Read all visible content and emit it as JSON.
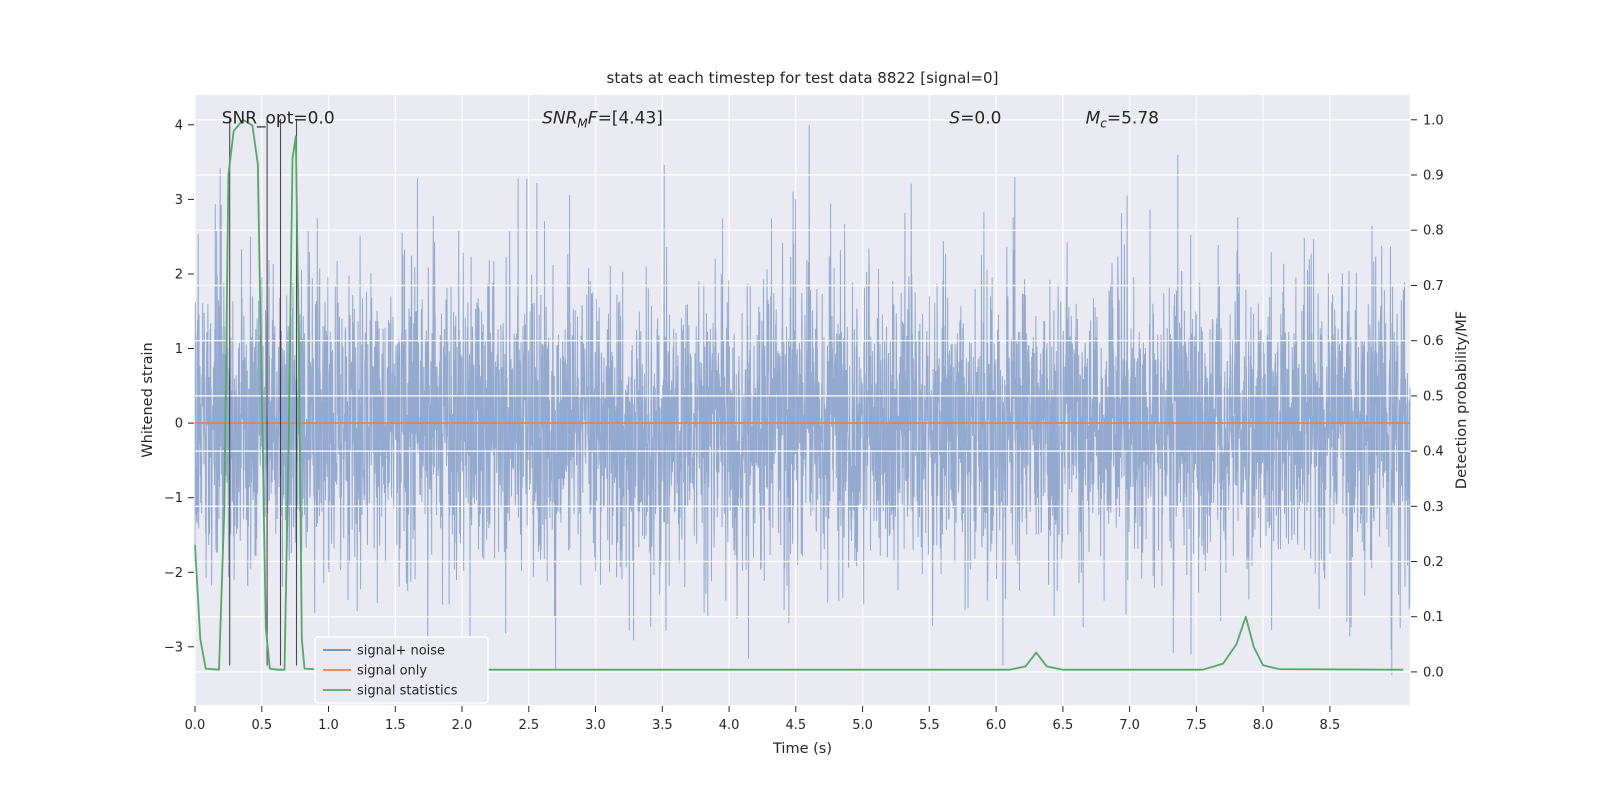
{
  "chart_data": {
    "type": "line",
    "title": "stats at each timestep for test data 8822 [signal=0]",
    "xlabel": "Time (s)",
    "ylabel_left": "Whitened strain",
    "ylabel_right": "Detection probability/MF",
    "xlim": [
      0,
      9.1
    ],
    "ylim_left": [
      -3.78,
      4.4
    ],
    "ylim_right": [
      -0.06,
      1.045
    ],
    "xticks": [
      [
        0,
        "0.0"
      ],
      [
        0.5,
        "0.5"
      ],
      [
        1,
        "1.0"
      ],
      [
        1.5,
        "1.5"
      ],
      [
        2,
        "2.0"
      ],
      [
        2.5,
        "2.5"
      ],
      [
        3,
        "3.0"
      ],
      [
        3.5,
        "3.5"
      ],
      [
        4,
        "4.0"
      ],
      [
        4.5,
        "4.5"
      ],
      [
        5,
        "5.0"
      ],
      [
        5.5,
        "5.5"
      ],
      [
        6,
        "6.0"
      ],
      [
        6.5,
        "6.5"
      ],
      [
        7,
        "7.0"
      ],
      [
        7.5,
        "7.5"
      ],
      [
        8,
        "8.0"
      ],
      [
        8.5,
        "8.5"
      ]
    ],
    "yticks_left": [
      [
        -3,
        "−3"
      ],
      [
        -2,
        "−2"
      ],
      [
        -1,
        "−1"
      ],
      [
        0,
        "0"
      ],
      [
        1,
        "1"
      ],
      [
        2,
        "2"
      ],
      [
        3,
        "3"
      ],
      [
        4,
        "4"
      ]
    ],
    "yticks_right": [
      [
        0,
        "0.0"
      ],
      [
        0.1,
        "0.1"
      ],
      [
        0.2,
        "0.2"
      ],
      [
        0.3,
        "0.3"
      ],
      [
        0.4,
        "0.4"
      ],
      [
        0.5,
        "0.5"
      ],
      [
        0.6,
        "0.6"
      ],
      [
        0.7,
        "0.7"
      ],
      [
        0.8,
        "0.8"
      ],
      [
        0.9,
        "0.9"
      ],
      [
        1,
        "1.0"
      ]
    ],
    "colors": {
      "figure_bg": "#ffffff",
      "plot_bg": "#eaeaf2",
      "grid": "#ffffff",
      "text": "#262626",
      "blue": "#4c72b0",
      "orange": "#dd8452",
      "green": "#55a868",
      "marker": "#2f2f2f"
    },
    "series": [
      {
        "name": "signal+ noise",
        "axis": "left",
        "kind": "gaussian_noise",
        "color": "#4c72b0",
        "opacity": 0.55,
        "n": 4600,
        "mean": 0,
        "std": 1.0,
        "seed": 8822,
        "clip": [
          -3.38,
          4.05
        ],
        "notable_peaks": [
          [
            2.42,
            3.28
          ],
          [
            2.56,
            3.22
          ],
          [
            4.6,
            4.0
          ],
          [
            6.14,
            3.3
          ],
          [
            6.98,
            3.05
          ],
          [
            7.36,
            3.6
          ],
          [
            2.7,
            -3.3
          ],
          [
            6.05,
            -3.25
          ],
          [
            7.46,
            -3.1
          ]
        ]
      },
      {
        "name": "signal only",
        "axis": "left",
        "kind": "constant",
        "color": "#dd8452",
        "value": 0
      },
      {
        "name": "signal statistics",
        "axis": "right",
        "kind": "keypoints",
        "color": "#55a868",
        "points": [
          [
            0,
            0.23
          ],
          [
            0.04,
            0.06
          ],
          [
            0.08,
            0.006
          ],
          [
            0.18,
            0.004
          ],
          [
            0.22,
            0.3
          ],
          [
            0.25,
            0.9
          ],
          [
            0.29,
            0.98
          ],
          [
            0.36,
            1.0
          ],
          [
            0.43,
            0.99
          ],
          [
            0.47,
            0.92
          ],
          [
            0.5,
            0.5
          ],
          [
            0.53,
            0.08
          ],
          [
            0.56,
            0.006
          ],
          [
            0.62,
            0.004
          ],
          [
            0.67,
            0.004
          ],
          [
            0.7,
            0.4
          ],
          [
            0.73,
            0.93
          ],
          [
            0.755,
            0.97
          ],
          [
            0.78,
            0.55
          ],
          [
            0.8,
            0.06
          ],
          [
            0.82,
            0.006
          ],
          [
            0.95,
            0.004
          ],
          [
            6.1,
            0.004
          ],
          [
            6.22,
            0.01
          ],
          [
            6.3,
            0.035
          ],
          [
            6.38,
            0.01
          ],
          [
            6.5,
            0.004
          ],
          [
            7.55,
            0.004
          ],
          [
            7.7,
            0.015
          ],
          [
            7.8,
            0.05
          ],
          [
            7.87,
            0.1
          ],
          [
            7.93,
            0.045
          ],
          [
            8.0,
            0.012
          ],
          [
            8.12,
            0.005
          ],
          [
            9.05,
            0.004
          ]
        ]
      }
    ],
    "marker_lines": {
      "color": "#2f2f2f",
      "x": [
        0.26,
        0.54,
        0.64,
        0.76
      ],
      "y_span_left": [
        -3.25,
        4.08
      ]
    },
    "annotations": [
      {
        "x": 0.2,
        "y": 4.1,
        "parts": [
          {
            "t": "SNR_opt=0.0"
          }
        ]
      },
      {
        "x": 2.6,
        "y": 4.1,
        "parts": [
          {
            "t": "SNR",
            "i": true
          },
          {
            "t": "M",
            "i": true,
            "sub": true
          },
          {
            "t": "F",
            "i": true
          },
          {
            "t": "=[4.43]"
          }
        ]
      },
      {
        "x": 5.65,
        "y": 4.1,
        "parts": [
          {
            "t": "S",
            "i": true
          },
          {
            "t": "=0.0"
          }
        ]
      },
      {
        "x": 6.67,
        "y": 4.1,
        "parts": [
          {
            "t": "M",
            "i": true
          },
          {
            "t": "c",
            "i": true,
            "sub": true
          },
          {
            "t": "=5.78"
          }
        ]
      }
    ],
    "legend": {
      "position": "lower left",
      "labels": [
        "signal+ noise",
        "signal only",
        "signal statistics"
      ]
    }
  }
}
